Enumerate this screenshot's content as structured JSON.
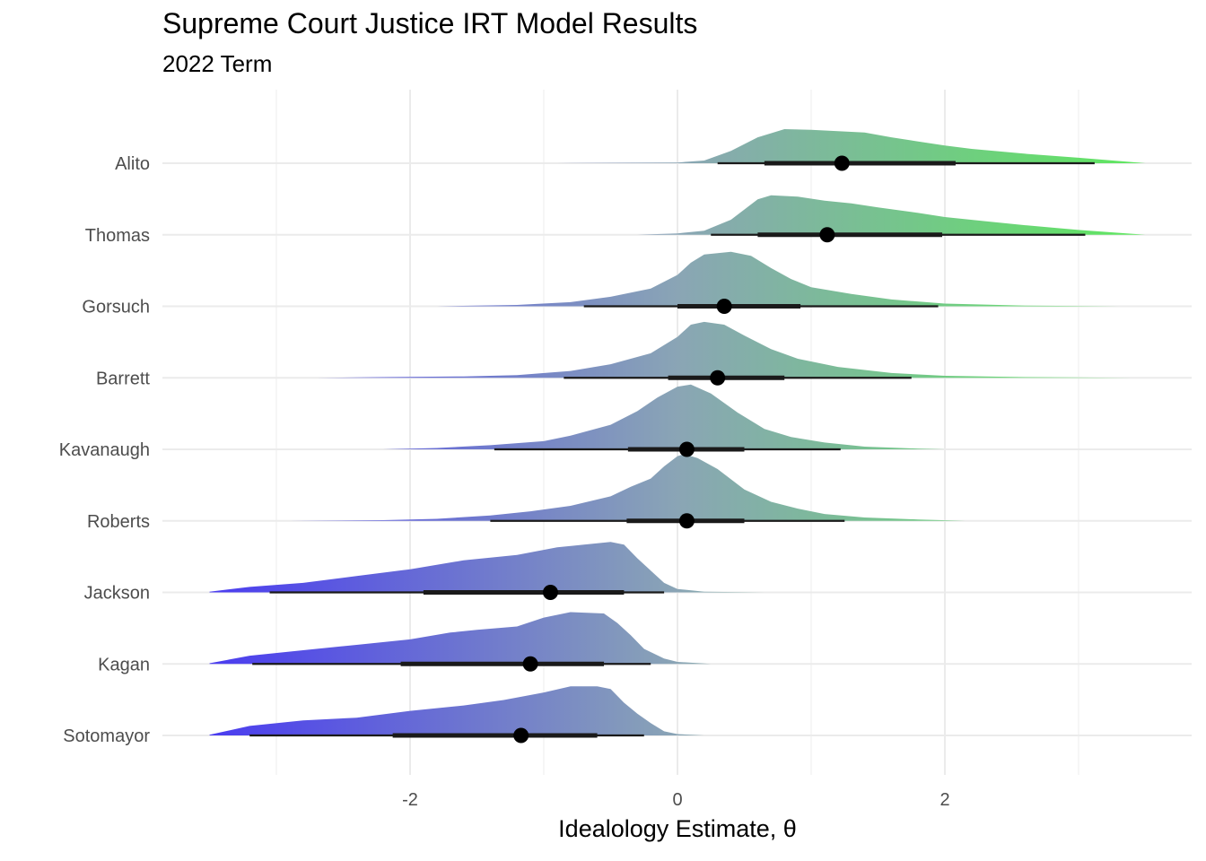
{
  "chart_data": {
    "type": "ridgeline",
    "title": "Supreme Court Justice IRT Model Results",
    "subtitle": "2022 Term",
    "xlabel": "Idealology Estimate, θ",
    "ylabel": "",
    "xlim": [
      -3.8,
      3.85
    ],
    "x_ticks": [
      -2,
      0,
      2
    ],
    "x_tick_labels": [
      "-2",
      "0",
      "2"
    ],
    "grid": true,
    "fill_gradient": {
      "low": "#4a3cf0",
      "mid": "#8aa5b5",
      "high": "#5ee85e"
    },
    "point_color": "#000000",
    "interval_color": "#1a1a1a",
    "justices": [
      {
        "name": "Sotomayor",
        "median": -1.17,
        "interval_66": [
          -2.13,
          -0.6
        ],
        "interval_95": [
          -3.2,
          -0.25
        ],
        "range": [
          -3.5,
          0.2
        ],
        "density": [
          [
            -3.5,
            0.01
          ],
          [
            -3.2,
            0.14
          ],
          [
            -2.8,
            0.22
          ],
          [
            -2.4,
            0.26
          ],
          [
            -2.0,
            0.36
          ],
          [
            -1.6,
            0.44
          ],
          [
            -1.3,
            0.52
          ],
          [
            -1.0,
            0.63
          ],
          [
            -0.8,
            0.72
          ],
          [
            -0.6,
            0.72
          ],
          [
            -0.5,
            0.68
          ],
          [
            -0.4,
            0.48
          ],
          [
            -0.3,
            0.32
          ],
          [
            -0.2,
            0.18
          ],
          [
            -0.1,
            0.06
          ],
          [
            0.0,
            0.02
          ],
          [
            0.2,
            0.0
          ]
        ]
      },
      {
        "name": "Kagan",
        "median": -1.1,
        "interval_66": [
          -2.07,
          -0.55
        ],
        "interval_95": [
          -3.18,
          -0.2
        ],
        "range": [
          -3.5,
          0.25
        ],
        "density": [
          [
            -3.5,
            0.01
          ],
          [
            -3.2,
            0.12
          ],
          [
            -2.8,
            0.2
          ],
          [
            -2.4,
            0.28
          ],
          [
            -2.0,
            0.36
          ],
          [
            -1.7,
            0.46
          ],
          [
            -1.5,
            0.5
          ],
          [
            -1.2,
            0.55
          ],
          [
            -1.0,
            0.68
          ],
          [
            -0.8,
            0.76
          ],
          [
            -0.55,
            0.74
          ],
          [
            -0.45,
            0.6
          ],
          [
            -0.35,
            0.42
          ],
          [
            -0.25,
            0.22
          ],
          [
            -0.1,
            0.08
          ],
          [
            0.0,
            0.03
          ],
          [
            0.25,
            0.0
          ]
        ]
      },
      {
        "name": "Jackson",
        "median": -0.95,
        "interval_66": [
          -1.9,
          -0.4
        ],
        "interval_95": [
          -3.05,
          -0.1
        ],
        "range": [
          -3.5,
          0.65
        ],
        "density": [
          [
            -3.5,
            0.01
          ],
          [
            -3.2,
            0.08
          ],
          [
            -2.8,
            0.14
          ],
          [
            -2.4,
            0.24
          ],
          [
            -2.0,
            0.34
          ],
          [
            -1.6,
            0.47
          ],
          [
            -1.2,
            0.55
          ],
          [
            -0.9,
            0.66
          ],
          [
            -0.7,
            0.7
          ],
          [
            -0.5,
            0.74
          ],
          [
            -0.4,
            0.7
          ],
          [
            -0.3,
            0.5
          ],
          [
            -0.2,
            0.32
          ],
          [
            -0.1,
            0.14
          ],
          [
            0.0,
            0.05
          ],
          [
            0.2,
            0.01
          ],
          [
            0.65,
            0.0
          ]
        ]
      },
      {
        "name": "Roberts",
        "median": 0.07,
        "interval_66": [
          -0.38,
          0.5
        ],
        "interval_95": [
          -1.4,
          1.25
        ],
        "range": [
          -2.9,
          2.15
        ],
        "density": [
          [
            -2.9,
            0.0
          ],
          [
            -2.2,
            0.01
          ],
          [
            -1.8,
            0.03
          ],
          [
            -1.4,
            0.08
          ],
          [
            -1.1,
            0.14
          ],
          [
            -0.8,
            0.22
          ],
          [
            -0.5,
            0.36
          ],
          [
            -0.35,
            0.5
          ],
          [
            -0.2,
            0.62
          ],
          [
            -0.1,
            0.8
          ],
          [
            0.0,
            0.95
          ],
          [
            0.05,
            0.98
          ],
          [
            0.15,
            0.92
          ],
          [
            0.3,
            0.76
          ],
          [
            0.5,
            0.46
          ],
          [
            0.7,
            0.28
          ],
          [
            0.9,
            0.18
          ],
          [
            1.1,
            0.1
          ],
          [
            1.4,
            0.05
          ],
          [
            1.8,
            0.02
          ],
          [
            2.15,
            0.0
          ]
        ]
      },
      {
        "name": "Kavanaugh",
        "median": 0.07,
        "interval_66": [
          -0.37,
          0.5
        ],
        "interval_95": [
          -1.37,
          1.22
        ],
        "range": [
          -2.2,
          2.0
        ],
        "density": [
          [
            -2.2,
            0.0
          ],
          [
            -1.8,
            0.02
          ],
          [
            -1.4,
            0.06
          ],
          [
            -1.0,
            0.12
          ],
          [
            -0.8,
            0.2
          ],
          [
            -0.5,
            0.36
          ],
          [
            -0.3,
            0.56
          ],
          [
            -0.15,
            0.76
          ],
          [
            0.0,
            0.92
          ],
          [
            0.1,
            0.95
          ],
          [
            0.25,
            0.82
          ],
          [
            0.45,
            0.54
          ],
          [
            0.65,
            0.3
          ],
          [
            0.85,
            0.18
          ],
          [
            1.1,
            0.1
          ],
          [
            1.4,
            0.04
          ],
          [
            1.8,
            0.01
          ],
          [
            2.0,
            0.0
          ]
        ]
      },
      {
        "name": "Barrett",
        "median": 0.3,
        "interval_66": [
          -0.07,
          0.8
        ],
        "interval_95": [
          -0.85,
          1.75
        ],
        "range": [
          -2.7,
          3.4
        ],
        "density": [
          [
            -2.7,
            0.0
          ],
          [
            -2.2,
            0.01
          ],
          [
            -1.6,
            0.02
          ],
          [
            -1.2,
            0.04
          ],
          [
            -0.8,
            0.1
          ],
          [
            -0.5,
            0.2
          ],
          [
            -0.2,
            0.36
          ],
          [
            0.0,
            0.6
          ],
          [
            0.1,
            0.78
          ],
          [
            0.2,
            0.82
          ],
          [
            0.35,
            0.78
          ],
          [
            0.5,
            0.62
          ],
          [
            0.7,
            0.42
          ],
          [
            0.9,
            0.28
          ],
          [
            1.2,
            0.16
          ],
          [
            1.6,
            0.07
          ],
          [
            2.0,
            0.03
          ],
          [
            2.6,
            0.01
          ],
          [
            3.4,
            0.0
          ]
        ]
      },
      {
        "name": "Gorsuch",
        "median": 0.35,
        "interval_66": [
          0.0,
          0.92
        ],
        "interval_95": [
          -0.7,
          1.95
        ],
        "range": [
          -1.8,
          3.3
        ],
        "density": [
          [
            -1.8,
            0.0
          ],
          [
            -1.2,
            0.02
          ],
          [
            -0.8,
            0.06
          ],
          [
            -0.5,
            0.14
          ],
          [
            -0.2,
            0.26
          ],
          [
            0.0,
            0.46
          ],
          [
            0.1,
            0.64
          ],
          [
            0.2,
            0.76
          ],
          [
            0.4,
            0.8
          ],
          [
            0.55,
            0.74
          ],
          [
            0.7,
            0.56
          ],
          [
            0.85,
            0.4
          ],
          [
            1.0,
            0.28
          ],
          [
            1.3,
            0.18
          ],
          [
            1.6,
            0.1
          ],
          [
            2.0,
            0.04
          ],
          [
            2.6,
            0.01
          ],
          [
            3.3,
            0.0
          ]
        ]
      },
      {
        "name": "Thomas",
        "median": 1.12,
        "interval_66": [
          0.6,
          1.98
        ],
        "interval_95": [
          0.25,
          3.05
        ],
        "range": [
          -0.3,
          3.5
        ],
        "density": [
          [
            -0.3,
            0.0
          ],
          [
            0.0,
            0.02
          ],
          [
            0.2,
            0.06
          ],
          [
            0.4,
            0.22
          ],
          [
            0.6,
            0.52
          ],
          [
            0.7,
            0.58
          ],
          [
            0.9,
            0.56
          ],
          [
            1.1,
            0.5
          ],
          [
            1.3,
            0.46
          ],
          [
            1.5,
            0.4
          ],
          [
            1.8,
            0.32
          ],
          [
            2.0,
            0.26
          ],
          [
            2.3,
            0.2
          ],
          [
            2.6,
            0.14
          ],
          [
            3.0,
            0.07
          ],
          [
            3.5,
            0.0
          ]
        ]
      },
      {
        "name": "Alito",
        "median": 1.23,
        "interval_66": [
          0.65,
          2.08
        ],
        "interval_95": [
          0.3,
          3.12
        ],
        "range": [
          -0.9,
          3.5
        ],
        "density": [
          [
            -0.9,
            0.0
          ],
          [
            0.0,
            0.01
          ],
          [
            0.2,
            0.04
          ],
          [
            0.4,
            0.18
          ],
          [
            0.6,
            0.38
          ],
          [
            0.8,
            0.5
          ],
          [
            1.0,
            0.49
          ],
          [
            1.2,
            0.47
          ],
          [
            1.4,
            0.45
          ],
          [
            1.6,
            0.38
          ],
          [
            1.8,
            0.32
          ],
          [
            2.0,
            0.26
          ],
          [
            2.2,
            0.21
          ],
          [
            2.6,
            0.14
          ],
          [
            3.0,
            0.08
          ],
          [
            3.5,
            0.0
          ]
        ]
      }
    ]
  }
}
